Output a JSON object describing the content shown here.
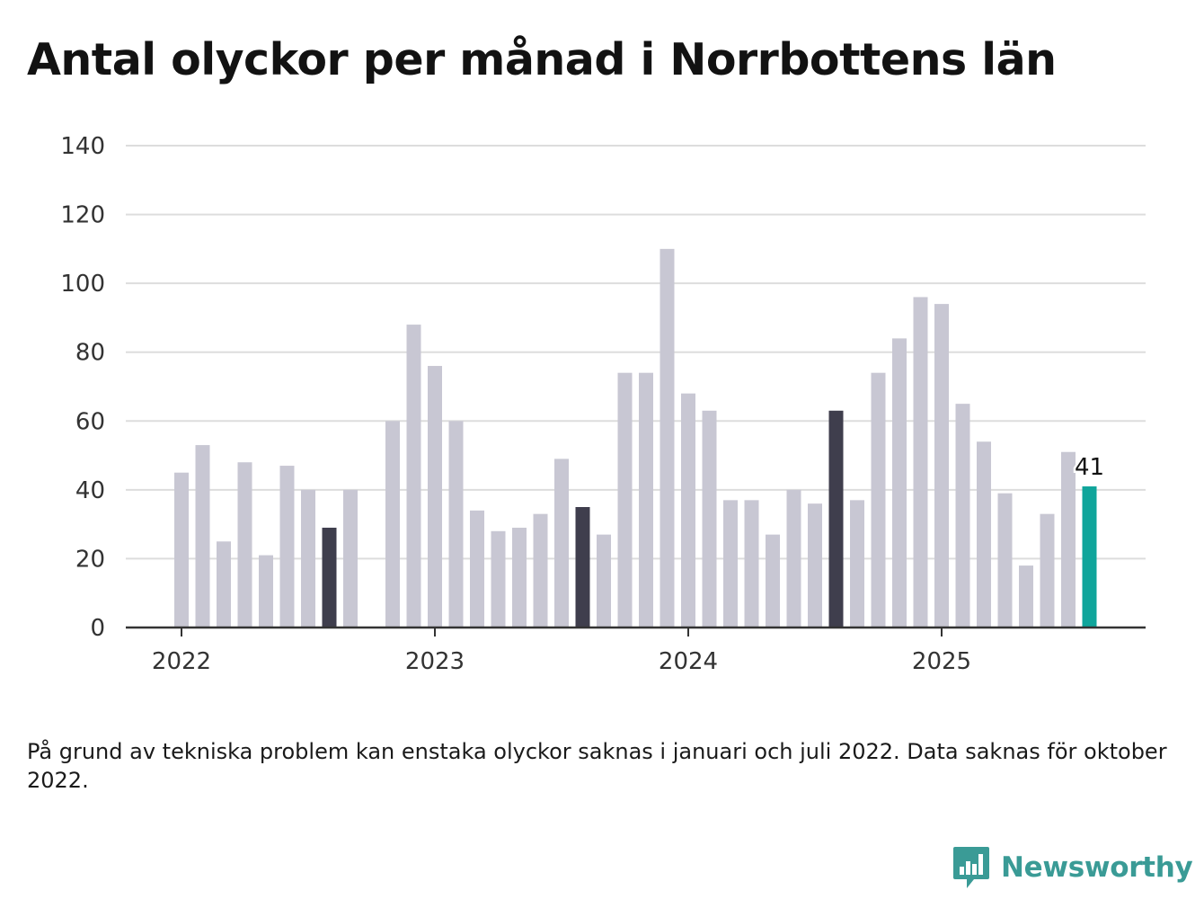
{
  "title": "Antal olyckor per månad i Norrbottens län",
  "note": "På grund av tekniska problem kan enstaka olyckor saknas i januari och juli 2022. Data saknas för oktober 2022.",
  "brand": {
    "name": "Newsworthy",
    "icon": "newsworthy-logo-icon"
  },
  "colors": {
    "bar": "#c8c7d3",
    "highlight": "#3f3e4d",
    "latest": "#0fa59b",
    "grid": "#dddddd",
    "axis": "#333333",
    "brand": "#3a9b96"
  },
  "chart_data": {
    "type": "bar",
    "title": "Antal olyckor per månad i Norrbottens län",
    "xlabel": "",
    "ylabel": "",
    "ylim": [
      0,
      140
    ],
    "yticks": [
      "0",
      "20",
      "40",
      "60",
      "80",
      "100",
      "120",
      "140"
    ],
    "xticks": [
      {
        "label": "2022",
        "at": "2022-01"
      },
      {
        "label": "2023",
        "at": "2023-01"
      },
      {
        "label": "2024",
        "at": "2024-01"
      },
      {
        "label": "2025",
        "at": "2025-01"
      }
    ],
    "grid": true,
    "categories": [
      "2022-01",
      "2022-02",
      "2022-03",
      "2022-04",
      "2022-05",
      "2022-06",
      "2022-07",
      "2022-08",
      "2022-09",
      "2022-10",
      "2022-11",
      "2022-12",
      "2023-01",
      "2023-02",
      "2023-03",
      "2023-04",
      "2023-05",
      "2023-06",
      "2023-07",
      "2023-08",
      "2023-09",
      "2023-10",
      "2023-11",
      "2023-12",
      "2024-01",
      "2024-02",
      "2024-03",
      "2024-04",
      "2024-05",
      "2024-06",
      "2024-07",
      "2024-08",
      "2024-09",
      "2024-10",
      "2024-11",
      "2024-12",
      "2025-01",
      "2025-02",
      "2025-03",
      "2025-04",
      "2025-05",
      "2025-06",
      "2025-07",
      "2025-08"
    ],
    "values": [
      45,
      53,
      25,
      48,
      21,
      47,
      40,
      29,
      40,
      null,
      60,
      88,
      76,
      60,
      34,
      28,
      29,
      33,
      49,
      35,
      27,
      74,
      74,
      110,
      68,
      63,
      37,
      37,
      27,
      40,
      36,
      63,
      37,
      74,
      84,
      96,
      94,
      65,
      54,
      39,
      18,
      33,
      51,
      41
    ],
    "highlighted": [
      "2022-08",
      "2023-08",
      "2024-08"
    ],
    "latest": "2025-08",
    "annotations": [
      {
        "at": "2025-08",
        "text": "41"
      }
    ]
  }
}
